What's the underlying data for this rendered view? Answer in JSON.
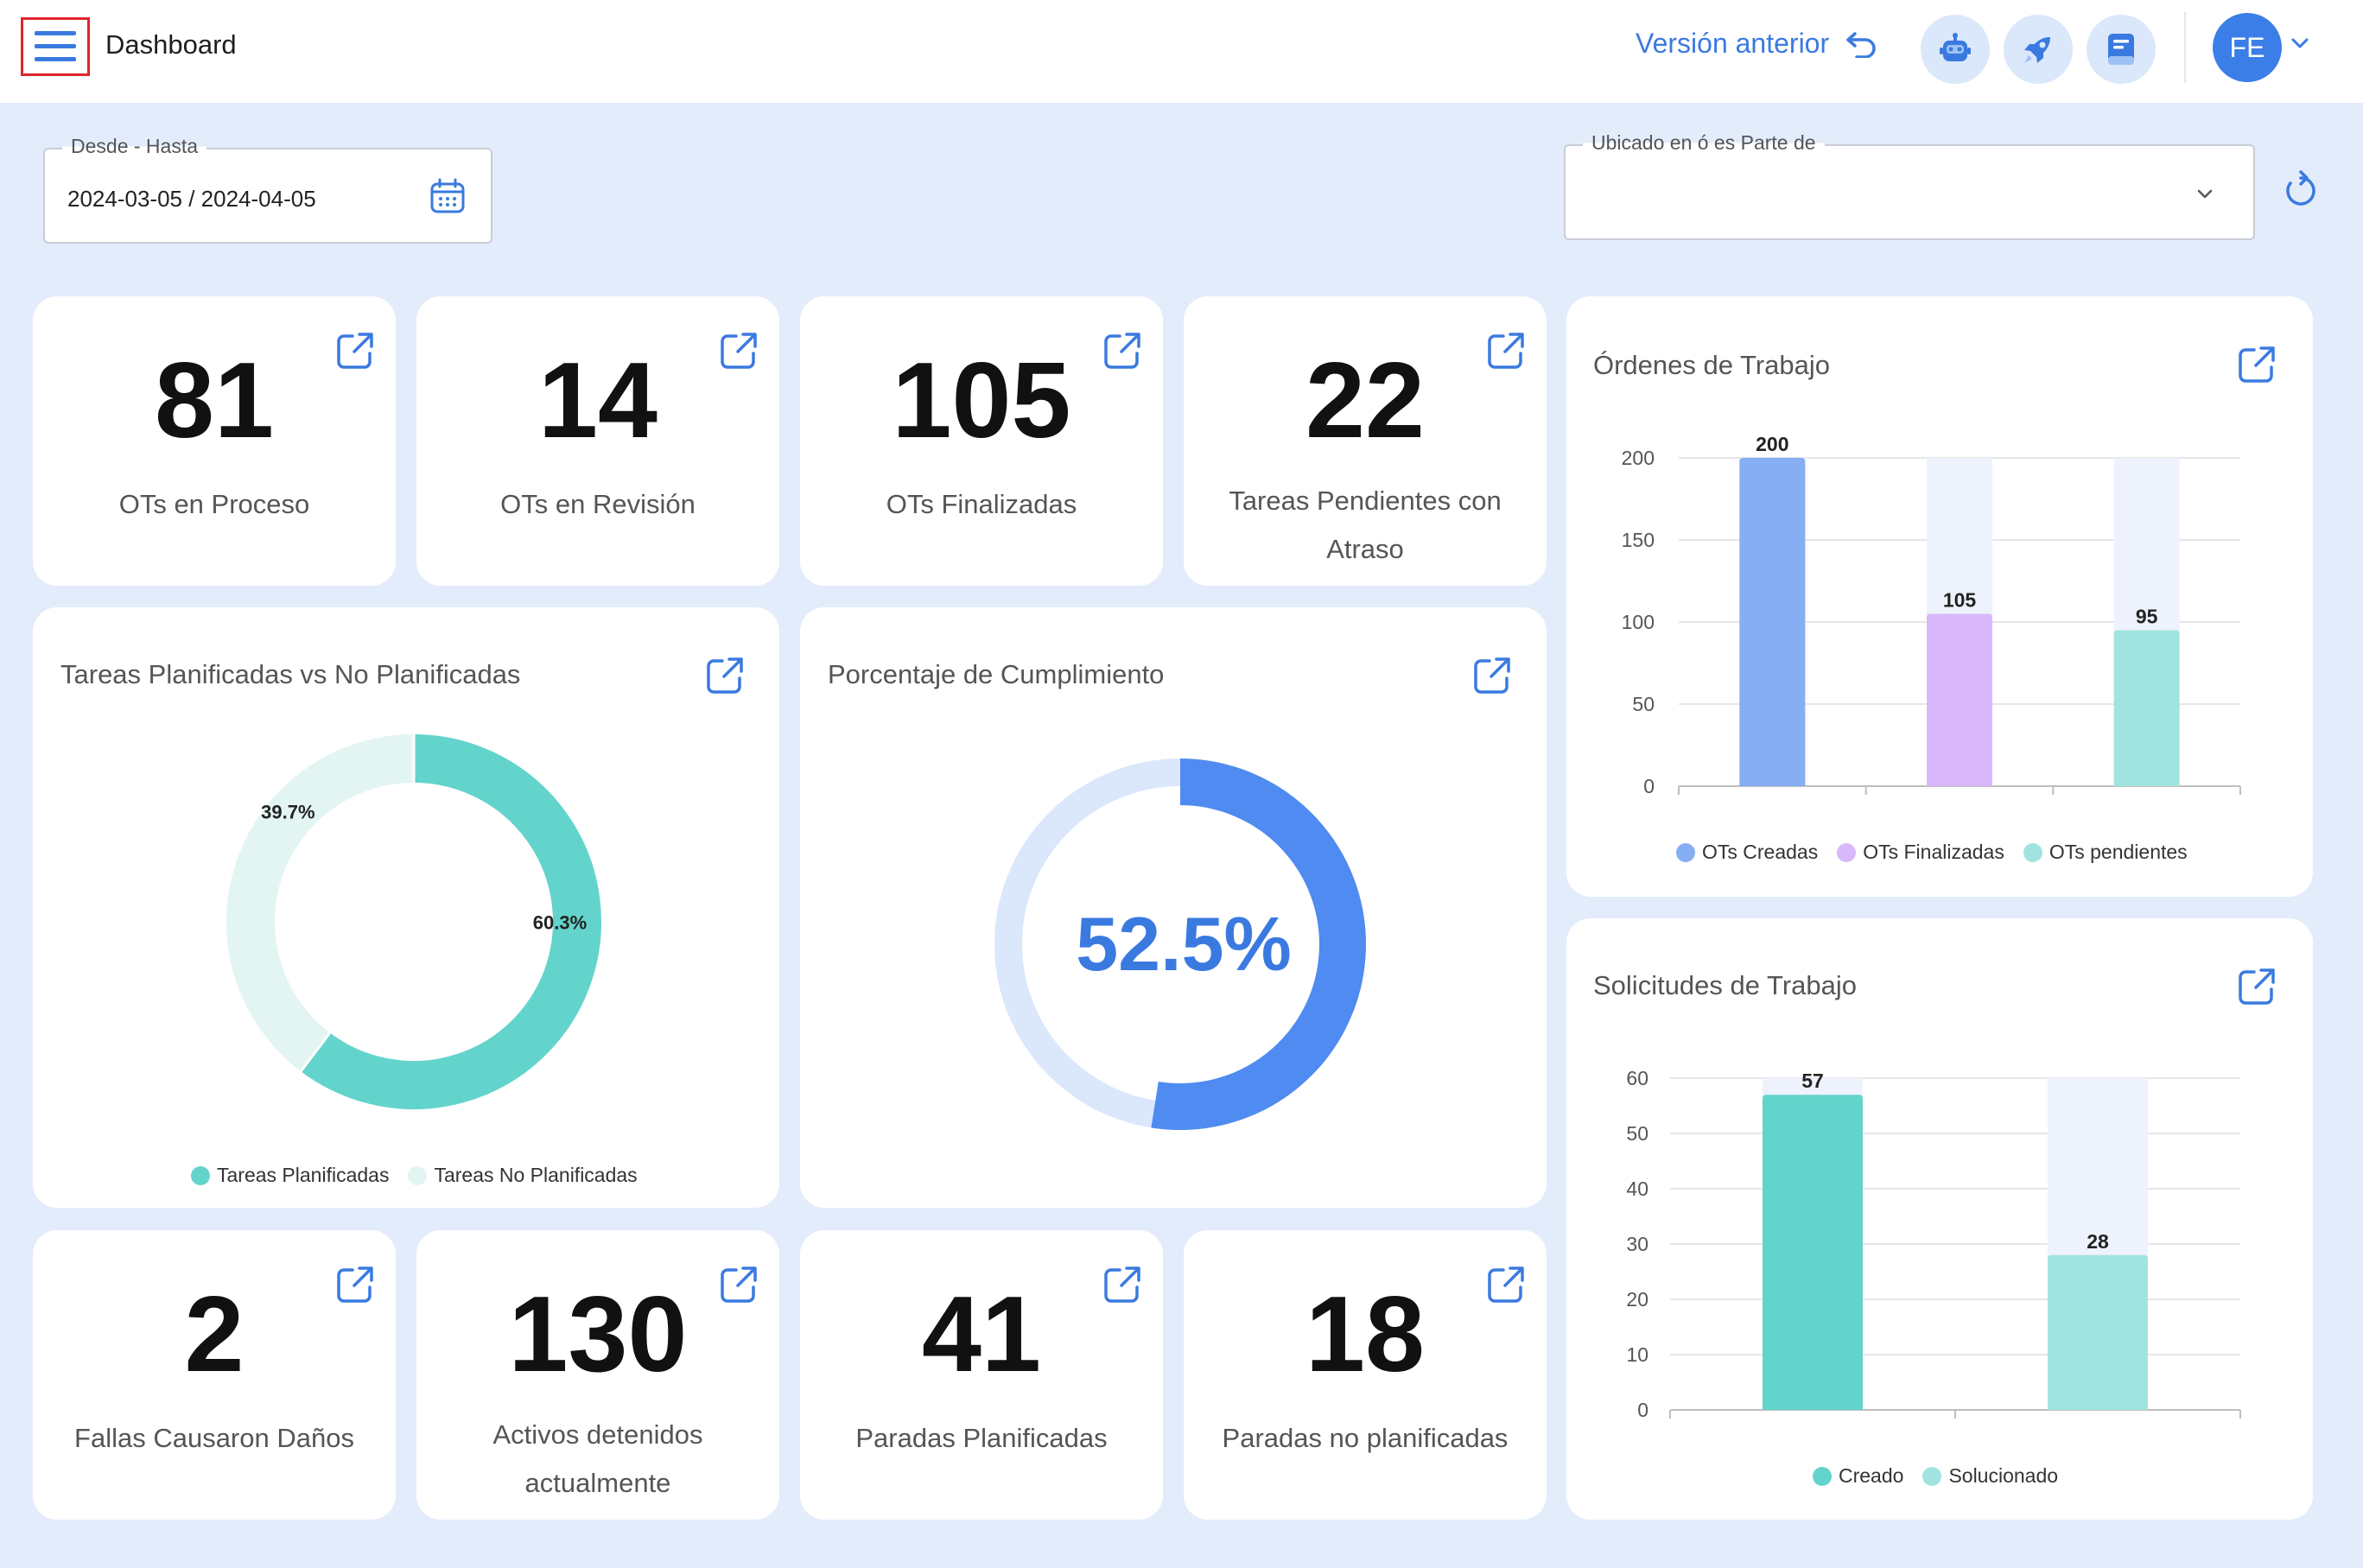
{
  "header": {
    "title": "Dashboard",
    "previous_version_label": "Versión anterior",
    "avatar_initials": "FE",
    "icons": [
      "menu-icon",
      "undo-icon",
      "robot-icon",
      "rocket-icon",
      "book-icon",
      "chevron-down-icon"
    ]
  },
  "filters": {
    "date_range": {
      "label": "Desde - Hasta",
      "value": "2024-03-05 / 2024-04-05"
    },
    "location": {
      "label": "Ubicado en ó es Parte de",
      "value": ""
    }
  },
  "kpis_top": [
    {
      "value": "81",
      "label": "OTs en Proceso"
    },
    {
      "value": "14",
      "label": "OTs en Revisión"
    },
    {
      "value": "105",
      "label": "OTs Finalizadas"
    },
    {
      "value": "22",
      "label_line1": "Tareas Pendientes con",
      "label_line2": "Atraso"
    }
  ],
  "kpis_bottom": [
    {
      "value": "2",
      "label": "Fallas Causaron Daños"
    },
    {
      "value": "130",
      "label_line1": "Activos detenidos",
      "label_line2": "actualmente"
    },
    {
      "value": "41",
      "label": "Paradas Planificadas"
    },
    {
      "value": "18",
      "label": "Paradas no planificadas"
    }
  ],
  "colors": {
    "accent": "#3a7ae0",
    "teal": "#63d4cb",
    "teal_light": "#e2f5f3",
    "blue_bar": "#85aef3",
    "purple_bar": "#d8b8fa",
    "mint_bar": "#a1e4df",
    "gauge_blue": "#4f8bf0",
    "gauge_track": "#dbe7fb"
  },
  "chart_data": [
    {
      "type": "pie",
      "title": "Tareas Planificadas vs No Planificadas",
      "categories": [
        "Tareas Planificadas",
        "Tareas No Planificadas"
      ],
      "values": [
        60.3,
        39.7
      ],
      "value_labels": [
        "60.3%",
        "39.7%"
      ],
      "legend": "bottom"
    },
    {
      "type": "pie",
      "title": "Porcentaje de Cumplimiento",
      "values": [
        52.5
      ],
      "center_label": "52.5%"
    },
    {
      "type": "bar",
      "title": "Órdenes de Trabajo",
      "categories": [
        "OTs Creadas",
        "OTs Finalizadas",
        "OTs pendientes"
      ],
      "values": [
        200,
        105,
        95
      ],
      "ylim": [
        0,
        200
      ],
      "yticks": [
        "200",
        "150",
        "100",
        "50",
        "0"
      ],
      "grid": true,
      "legend": "bottom"
    },
    {
      "type": "bar",
      "title": "Solicitudes de Trabajo",
      "categories": [
        "Creado",
        "Solucionado"
      ],
      "values": [
        57,
        28
      ],
      "ylim": [
        0,
        60
      ],
      "yticks": [
        "60",
        "50",
        "40",
        "30",
        "20",
        "10",
        "0"
      ],
      "grid": true,
      "legend": "bottom"
    }
  ]
}
